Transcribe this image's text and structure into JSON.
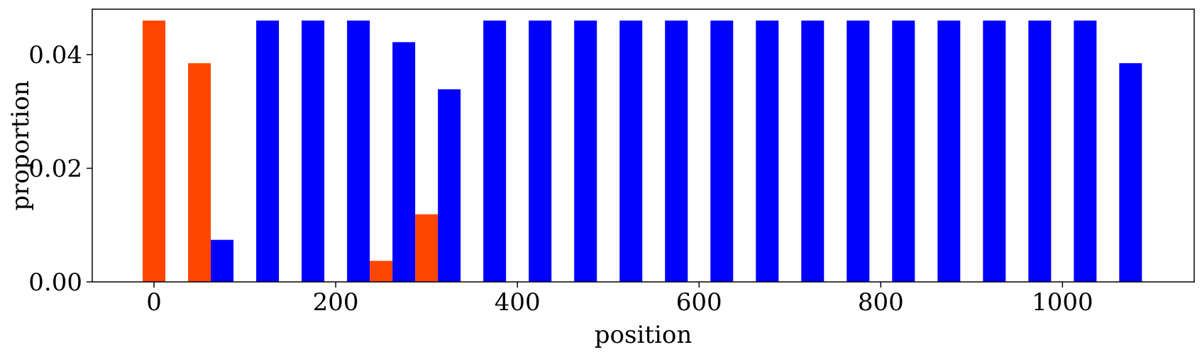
{
  "chart_data": {
    "type": "bar",
    "xlabel": "position",
    "ylabel": "proportion",
    "xlim": [
      -68,
      1145
    ],
    "ylim": [
      0,
      0.048
    ],
    "xticks": [
      0,
      200,
      400,
      600,
      800,
      1000
    ],
    "xtick_labels": [
      "0",
      "200",
      "400",
      "600",
      "800",
      "1000"
    ],
    "yticks": [
      0,
      0.02,
      0.04
    ],
    "ytick_labels": [
      "0.00",
      "0.02",
      "0.04"
    ],
    "bar_width": 25,
    "grid": false,
    "series": [
      {
        "color": "#ff4500",
        "x": [
          0,
          50,
          250,
          300
        ],
        "values": [
          0.046,
          0.0385,
          0.0037,
          0.0119
        ]
      },
      {
        "color": "#0000ff",
        "x": [
          75,
          125,
          175,
          225,
          275,
          325,
          375,
          425,
          475,
          525,
          575,
          625,
          675,
          725,
          775,
          825,
          875,
          925,
          975,
          1025,
          1075
        ],
        "values": [
          0.0074,
          0.046,
          0.046,
          0.046,
          0.0422,
          0.0339,
          0.046,
          0.046,
          0.046,
          0.046,
          0.046,
          0.046,
          0.046,
          0.046,
          0.046,
          0.046,
          0.046,
          0.046,
          0.046,
          0.046,
          0.0385
        ]
      }
    ]
  }
}
